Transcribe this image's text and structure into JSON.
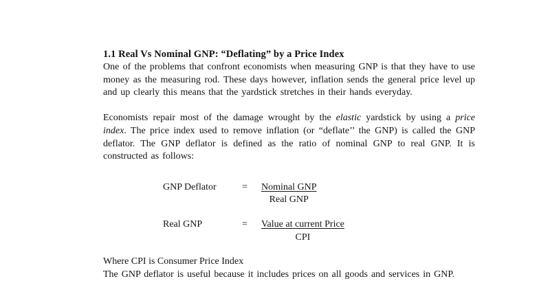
{
  "page": {
    "background": "#ffffff",
    "text_color": "#131313"
  },
  "doc": {
    "heading": "1.1 Real Vs Nominal GNP: “Deflating” by a Price Index",
    "para1": "One of the problems that confront economists when measuring GNP is that they have to use money as the measuring rod. These days however, inflation sends the general price level up and up clearly this means that the yardstick stretches in their hands everyday.",
    "para2_segments": [
      {
        "style": "normal",
        "text": "Economists repair most of the damage wrought by the "
      },
      {
        "style": "italic",
        "text": "elastic"
      },
      {
        "style": "normal",
        "text": " yardstick by using a "
      },
      {
        "style": "italic",
        "text": "price index"
      },
      {
        "style": "normal",
        "text": ". The price index used to remove inflation (or “deflate’’ the GNP) is called the GNP deflator. The GNP deflator is defined as the ratio of nominal GNP to real GNP.  It is constructed as follows:"
      }
    ],
    "formulas": [
      {
        "lhs": "GNP Deflator",
        "eq": "=",
        "numerator": "Nominal GNP",
        "denominator": "Real GNP"
      },
      {
        "lhs": "Real GNP",
        "eq": "=",
        "numerator": "Value at current Price",
        "denominator": "CPI"
      }
    ],
    "where_line": "Where CPI is Consumer Price Index",
    "closing": "The GNP deflator is useful because it includes prices on all goods and services in GNP."
  }
}
